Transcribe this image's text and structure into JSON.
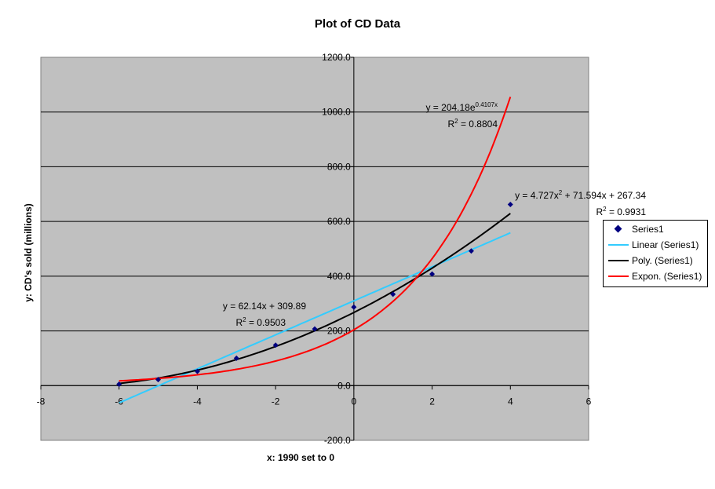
{
  "chart_data": {
    "type": "scatter",
    "title": "Plot of CD Data",
    "xlabel": "x: 1990 set to 0",
    "ylabel": "y: CD's sold (millions)",
    "xlim": [
      -8,
      6
    ],
    "ylim": [
      -200,
      1200
    ],
    "xticks": [
      "-8",
      "-6",
      "-4",
      "-2",
      "0",
      "2",
      "4",
      "6"
    ],
    "yticks": [
      "-200.0",
      "0.0",
      "200.0",
      "400.0",
      "600.0",
      "800.0",
      "1000.0",
      "1200.0"
    ],
    "grid": "horizontal",
    "background": "#c0c0c0",
    "legend_position": "right",
    "series": [
      {
        "name": "Series1",
        "kind": "points",
        "color": "#000080",
        "x": [
          -6,
          -5,
          -4,
          -3,
          -2,
          -1,
          0,
          1,
          2,
          3,
          4
        ],
        "y": [
          5,
          22,
          52,
          100,
          148,
          207,
          287,
          334,
          408,
          492,
          662
        ]
      }
    ],
    "trendlines": [
      {
        "name": "Linear (Series1)",
        "kind": "linear",
        "color": "#33ccff",
        "equation_text": "y = 62.14x + 309.89",
        "r2_label": "R",
        "r2_value": " = 0.9503",
        "coefficients": {
          "slope": 62.14,
          "intercept": 309.89
        }
      },
      {
        "name": "Poly. (Series1)",
        "kind": "polynomial",
        "color": "#000000",
        "equation_parts": [
          "y = 4.727x",
          "2",
          " + 71.594x + 267.34"
        ],
        "r2_label": "R",
        "r2_value": " = 0.9931",
        "coefficients": {
          "a": 4.727,
          "b": 71.594,
          "c": 267.34
        }
      },
      {
        "name": "Expon. (Series1)",
        "kind": "exponential",
        "color": "#ff0000",
        "equation_parts": [
          "y = 204.18e",
          "0.4107x"
        ],
        "r2_label": "R",
        "r2_value": " = 0.8804",
        "coefficients": {
          "a": 204.18,
          "b": 0.4107
        }
      }
    ]
  }
}
